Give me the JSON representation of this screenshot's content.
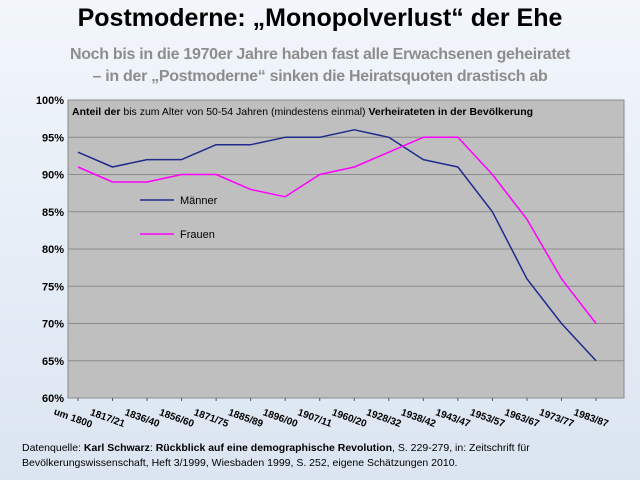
{
  "title": "Postmoderne: „Monopolverlust“ der Ehe",
  "subtitle_line1": "Noch bis in die 1970er Jahre haben fast alle Erwachsenen geheiratet",
  "subtitle_line2": "– in der „Postmoderne“ sinken die Heiratsquoten drastisch ab",
  "source": {
    "prefix": "Datenquelle: ",
    "author": "Karl Schwarz",
    "sep1": ": ",
    "work": "Rückblick auf eine demographische Revolution",
    "rest": ", S. 229-279, in: Zeitschrift für Bevölkerungswissenschaft, Heft 3/1999, Wiesbaden 1999, S. 252, eigene Schätzungen 2010."
  },
  "chart_data": {
    "type": "line",
    "inner_title_bold1": "Anteil der",
    "inner_title_plain": " bis zum Alter von 50-54 Jahren (mindestens einmal) ",
    "inner_title_bold2": "Verheirateten in der Bevölkerung",
    "categories": [
      "um 1800",
      "1817/21",
      "1836/40",
      "1856/60",
      "1871/75",
      "1885/89",
      "1896/00",
      "1907/11",
      "1960/20",
      "1928/32",
      "1938/42",
      "1943/47",
      "1953/57",
      "1963/67",
      "1973/77",
      "1983/87"
    ],
    "series": [
      {
        "name": "Männer",
        "color": "#1f2a8c",
        "values": [
          93,
          91,
          92,
          92,
          94,
          94,
          95,
          95,
          96,
          95,
          92,
          91,
          85,
          76,
          70,
          65
        ]
      },
      {
        "name": "Frauen",
        "color": "#ff00ff",
        "values": [
          91,
          89,
          89,
          90,
          90,
          88,
          87,
          90,
          91,
          93,
          95,
          95,
          90,
          84,
          76,
          70
        ]
      }
    ],
    "ylim": [
      60,
      100
    ],
    "yticks": [
      "60%",
      "65%",
      "70%",
      "75%",
      "80%",
      "85%",
      "90%",
      "95%",
      "100%"
    ],
    "grid": true,
    "plot_background": "#bfbfbf"
  }
}
